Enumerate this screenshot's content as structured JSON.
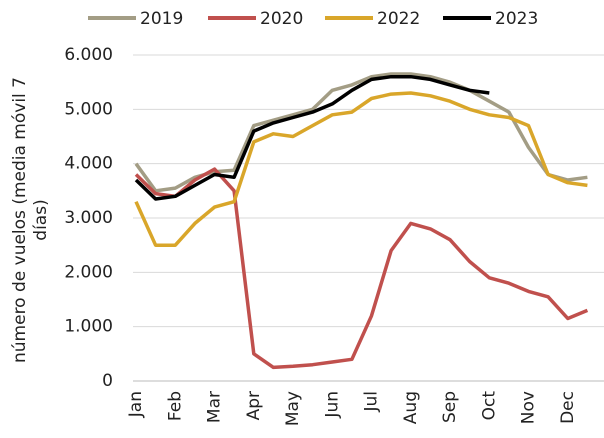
{
  "chart_data": {
    "type": "line",
    "y_label": "número de vuelos (media móvil 7 días)",
    "categories": [
      "Jan",
      null,
      "Feb",
      null,
      "Mar",
      null,
      "Apr",
      null,
      "May",
      null,
      "Jun",
      null,
      "Jul",
      null,
      "Aug",
      null,
      "Sep",
      null,
      "Oct",
      null,
      "Nov",
      null,
      "Dec",
      null
    ],
    "series": [
      {
        "name": "2019",
        "color": "#a39d85",
        "values": [
          4000,
          3500,
          3550,
          3750,
          3850,
          3880,
          4700,
          4800,
          4900,
          5000,
          5350,
          5450,
          5600,
          5650,
          5650,
          5600,
          5500,
          5350,
          5150,
          4950,
          4300,
          3800,
          3700,
          3750
        ]
      },
      {
        "name": "2020",
        "color": "#c0504d",
        "values": [
          3800,
          3450,
          3400,
          3700,
          3900,
          3500,
          500,
          250,
          270,
          300,
          350,
          400,
          1200,
          2400,
          2900,
          2800,
          2600,
          2200,
          1900,
          1800,
          1650,
          1550,
          1150,
          1300
        ]
      },
      {
        "name": "2022",
        "color": "#d9a62a",
        "values": [
          3300,
          2500,
          2500,
          2900,
          3200,
          3300,
          4400,
          4550,
          4500,
          4700,
          4900,
          4950,
          5200,
          5280,
          5300,
          5250,
          5150,
          5000,
          4900,
          4850,
          4700,
          3800,
          3650,
          3600
        ]
      },
      {
        "name": "2023",
        "color": "#000000",
        "values": [
          3700,
          3350,
          3400,
          3600,
          3800,
          3750,
          4600,
          4750,
          4850,
          4950,
          5100,
          5350,
          5550,
          5600,
          5600,
          5550,
          5450,
          5350,
          5300,
          null,
          null,
          null,
          null,
          null
        ]
      }
    ],
    "ylim": [
      0,
      6000
    ],
    "yticks": [
      0,
      {
        "value": 1000,
        "label": "1.000"
      },
      {
        "value": 2000,
        "label": "2.000"
      },
      {
        "value": 3000,
        "label": "3.000"
      },
      {
        "value": 4000,
        "label": "4.000"
      },
      {
        "value": 5000,
        "label": "5.000"
      },
      {
        "value": 6000,
        "label": "6.000"
      }
    ],
    "grid": true,
    "legend": "top"
  }
}
